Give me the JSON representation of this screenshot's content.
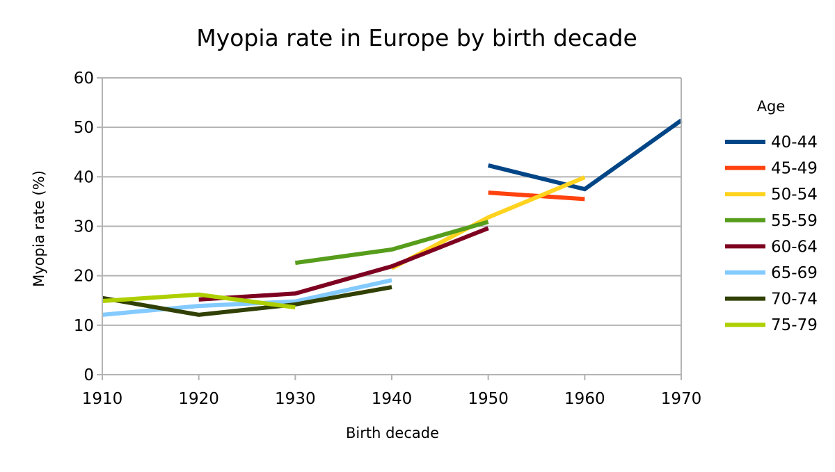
{
  "chart_data": {
    "type": "line",
    "title": "Myopia rate in Europe by birth decade",
    "xlabel": "Birth decade",
    "ylabel": "Myopia rate (%)",
    "xlim": [
      1910,
      1970
    ],
    "ylim": [
      0,
      60
    ],
    "xticks": [
      1910,
      1920,
      1930,
      1940,
      1950,
      1960,
      1970
    ],
    "yticks": [
      0,
      10,
      20,
      30,
      40,
      50,
      60
    ],
    "grid": "horizontal",
    "legend_title": "Age",
    "legend_position": "right",
    "series": [
      {
        "name": "40-44",
        "color": "#004586",
        "x": [
          1950,
          1960,
          1970
        ],
        "y": [
          42.3,
          37.5,
          51.4
        ]
      },
      {
        "name": "45-49",
        "color": "#ff420e",
        "x": [
          1950,
          1960
        ],
        "y": [
          36.8,
          35.5
        ]
      },
      {
        "name": "50-54",
        "color": "#ffd320",
        "x": [
          1940,
          1950,
          1960
        ],
        "y": [
          21.5,
          31.8,
          39.9
        ]
      },
      {
        "name": "55-59",
        "color": "#579d1c",
        "x": [
          1930,
          1940,
          1950
        ],
        "y": [
          22.6,
          25.3,
          30.9
        ]
      },
      {
        "name": "60-64",
        "color": "#7e0021",
        "x": [
          1920,
          1930,
          1940,
          1950
        ],
        "y": [
          15.2,
          16.4,
          21.9,
          29.6
        ]
      },
      {
        "name": "65-69",
        "color": "#83caff",
        "x": [
          1910,
          1920,
          1930,
          1940
        ],
        "y": [
          12.1,
          13.9,
          14.8,
          19.1
        ]
      },
      {
        "name": "70-74",
        "color": "#314004",
        "x": [
          1910,
          1920,
          1930,
          1940
        ],
        "y": [
          15.5,
          12.1,
          14.2,
          17.7
        ]
      },
      {
        "name": "75-79",
        "color": "#aecf00",
        "x": [
          1910,
          1920,
          1930
        ],
        "y": [
          14.9,
          16.2,
          13.6
        ]
      }
    ]
  }
}
